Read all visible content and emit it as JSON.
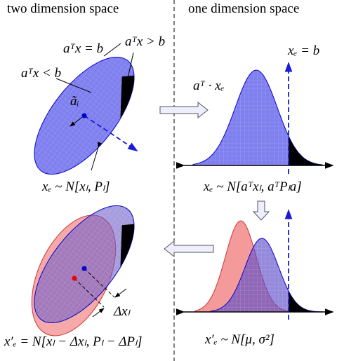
{
  "headers": {
    "left": "two dimension space",
    "right": "one dimension space"
  },
  "labels": {
    "hyperplane": "aᵀx = b",
    "above": "aᵀx > b",
    "below": "aᵀx < b",
    "normal": "ãᵢ",
    "threshold": "xₑ = b",
    "projection": "aᵀ · xₑ",
    "prior2d": "xₑ ~ N[xₗ, Pₗ]",
    "prior1d": "xₑ ~ N[aᵀxₗ, aᵀPₗa]",
    "post1d": "x′ₑ ~ N[μ, σ²]",
    "shift": "Δxₗ",
    "post2d": "x′ₑ = N[xₗ − Δxₗ, Pₗ − ΔPₗ]"
  }
}
